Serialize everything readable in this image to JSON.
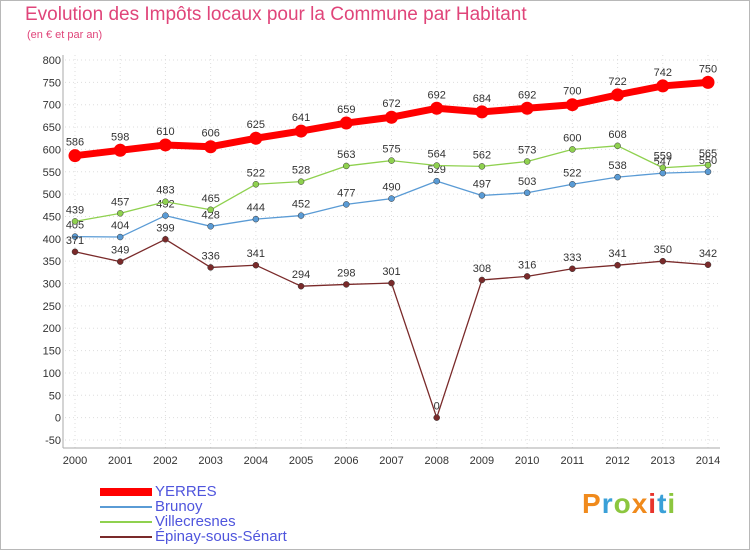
{
  "chart_data": {
    "type": "line",
    "title": "Evolution des Impôts locaux pour la Commune par Habitant",
    "subtitle": "(en € et par an)",
    "x": [
      2000,
      2001,
      2002,
      2003,
      2004,
      2005,
      2006,
      2007,
      2008,
      2009,
      2010,
      2011,
      2012,
      2013,
      2014
    ],
    "ylim": [
      -50,
      800
    ],
    "yticks": [
      -50,
      0,
      50,
      100,
      150,
      200,
      250,
      300,
      350,
      400,
      450,
      500,
      550,
      600,
      650,
      700,
      750,
      800
    ],
    "grid": true,
    "legend_position": "bottom-left",
    "series": [
      {
        "name": "YERRES",
        "color": "#ff0000",
        "values": [
          586,
          598,
          610,
          606,
          625,
          641,
          659,
          672,
          692,
          684,
          692,
          700,
          722,
          742,
          750
        ]
      },
      {
        "name": "Brunoy",
        "color": "#5a9bd5",
        "values": [
          405,
          404,
          452,
          428,
          444,
          452,
          477,
          490,
          529,
          497,
          503,
          522,
          538,
          547,
          550
        ]
      },
      {
        "name": "Villecresnes",
        "color": "#8fd14f",
        "values": [
          439,
          457,
          483,
          465,
          522,
          528,
          563,
          575,
          564,
          562,
          573,
          600,
          608,
          559,
          565
        ]
      },
      {
        "name": "Épinay-sous-Sénart",
        "color": "#7a2a2a",
        "values": [
          371,
          349,
          399,
          336,
          341,
          294,
          298,
          301,
          0,
          308,
          316,
          333,
          341,
          350,
          342
        ]
      }
    ]
  },
  "branding": {
    "logo": "Proxiti"
  }
}
